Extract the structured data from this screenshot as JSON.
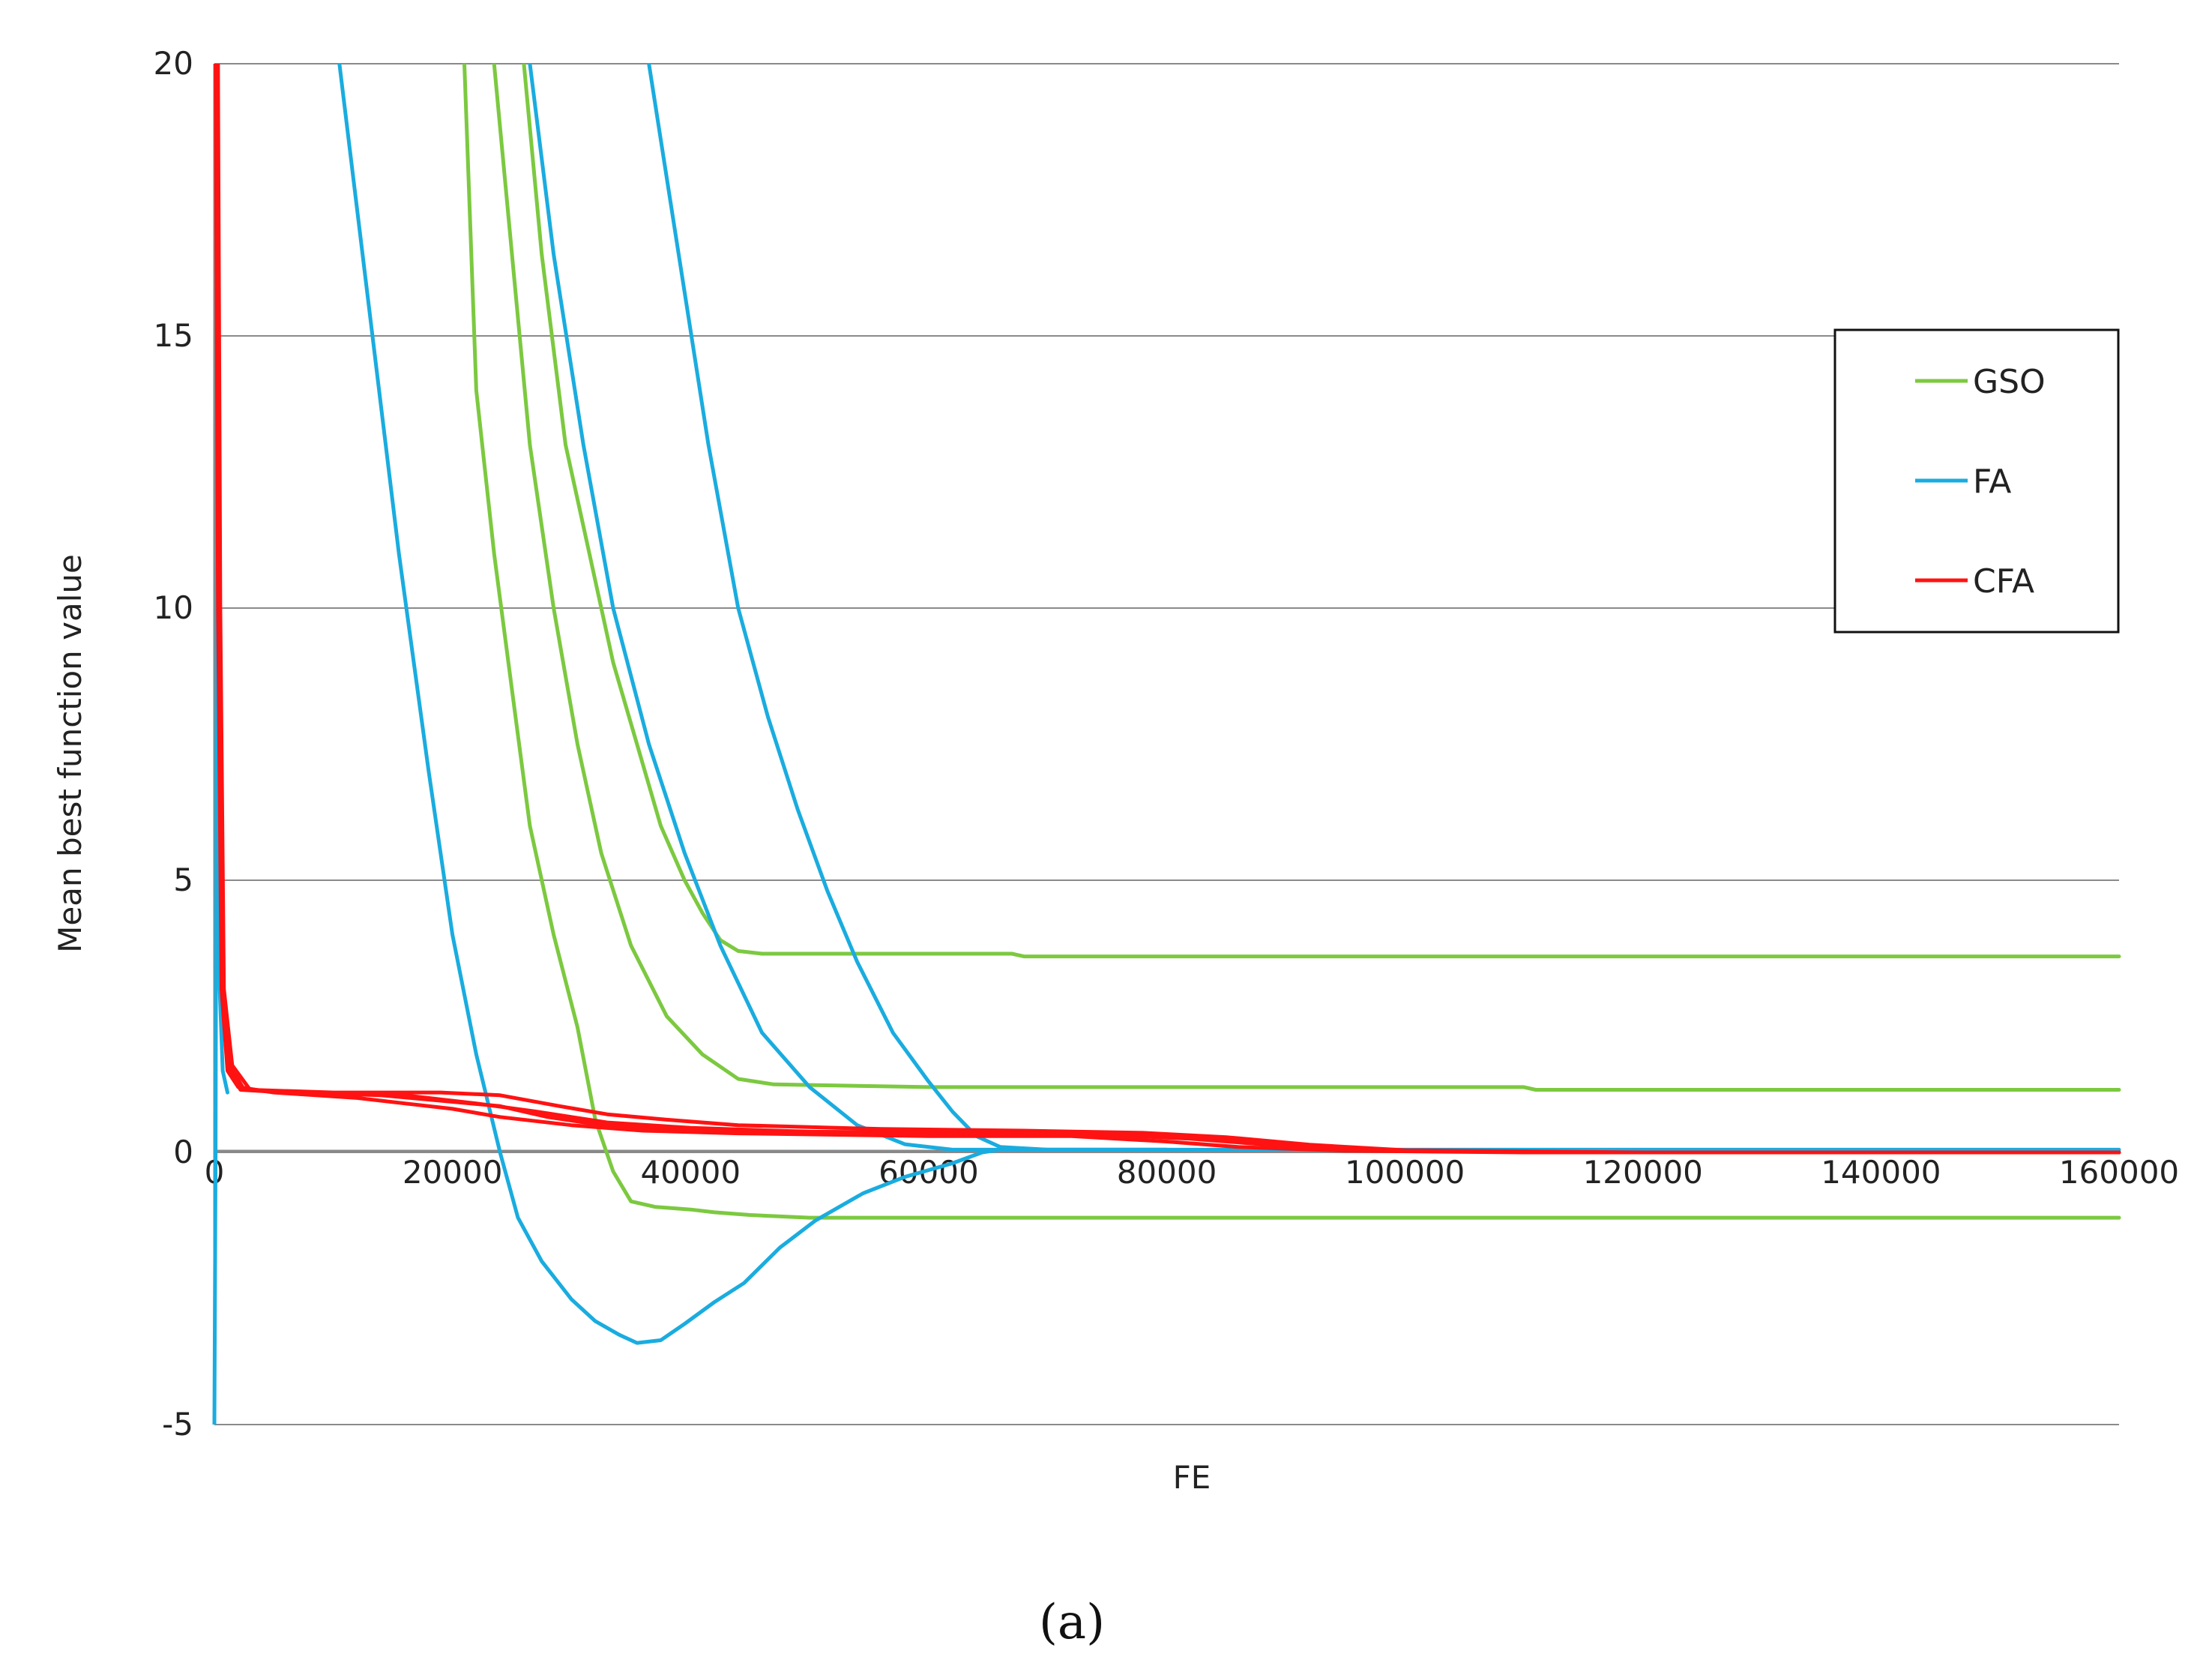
{
  "chart_data": {
    "type": "line",
    "title": "",
    "xlabel": "FE",
    "ylabel": "Mean best function value",
    "xlim": [
      0,
      160000
    ],
    "ylim": [
      -5,
      20
    ],
    "x_ticks": [
      "0",
      "20000",
      "40000",
      "60000",
      "80000",
      "100000",
      "120000",
      "140000",
      "160000"
    ],
    "y_ticks": [
      "20",
      "15",
      "10",
      "5",
      "0",
      "-5"
    ],
    "grid": "horizontal",
    "legend_position": "right",
    "panel_label": "(a)",
    "legend": [
      {
        "name": "GSO",
        "color": "#7cc940"
      },
      {
        "name": "FA",
        "color": "#1aacdf"
      },
      {
        "name": "CFA",
        "color": "#ff1212"
      }
    ],
    "series": [
      {
        "group": "GSO",
        "color": "#7cc940",
        "points": [
          [
            21000,
            20
          ],
          [
            22000,
            14
          ],
          [
            23500,
            11
          ],
          [
            25000,
            8.5
          ],
          [
            26500,
            6
          ],
          [
            28500,
            4
          ],
          [
            30500,
            2.3
          ],
          [
            32000,
            0.6
          ],
          [
            33500,
            -0.35
          ],
          [
            35000,
            -0.9
          ],
          [
            37000,
            -1.0
          ],
          [
            40000,
            -1.05
          ],
          [
            42000,
            -1.1
          ],
          [
            45000,
            -1.15
          ],
          [
            50000,
            -1.2
          ],
          [
            70000,
            -1.2
          ],
          [
            160000,
            -1.2
          ]
        ]
      },
      {
        "group": "GSO",
        "color": "#7cc940",
        "points": [
          [
            23500,
            20
          ],
          [
            25000,
            16.5
          ],
          [
            26500,
            13
          ],
          [
            28500,
            10
          ],
          [
            30500,
            7.5
          ],
          [
            32500,
            5.5
          ],
          [
            35000,
            3.8
          ],
          [
            38000,
            2.5
          ],
          [
            41000,
            1.8
          ],
          [
            44000,
            1.35
          ],
          [
            47000,
            1.25
          ],
          [
            60000,
            1.2
          ],
          [
            110000,
            1.2
          ],
          [
            111000,
            1.15
          ],
          [
            160000,
            1.15
          ]
        ]
      },
      {
        "group": "GSO",
        "color": "#7cc940",
        "points": [
          [
            26000,
            20
          ],
          [
            27500,
            16.5
          ],
          [
            29500,
            13
          ],
          [
            31500,
            11
          ],
          [
            33500,
            9
          ],
          [
            35500,
            7.5
          ],
          [
            37500,
            6
          ],
          [
            39500,
            5
          ],
          [
            41000,
            4.4
          ],
          [
            42500,
            3.9
          ],
          [
            44000,
            3.7
          ],
          [
            46000,
            3.65
          ],
          [
            67000,
            3.65
          ],
          [
            68000,
            3.6
          ],
          [
            160000,
            3.6
          ]
        ]
      },
      {
        "group": "FA",
        "color": "#1aacdf",
        "points": [
          [
            10500,
            20
          ],
          [
            13000,
            15.5
          ],
          [
            15500,
            11
          ],
          [
            18000,
            7
          ],
          [
            20000,
            4
          ],
          [
            22000,
            1.8
          ],
          [
            24000,
            0
          ],
          [
            25500,
            -1.2
          ],
          [
            27500,
            -2.0
          ],
          [
            30000,
            -2.7
          ],
          [
            32000,
            -3.1
          ],
          [
            34000,
            -3.35
          ],
          [
            35500,
            -3.5
          ],
          [
            37500,
            -3.45
          ],
          [
            39500,
            -3.15
          ],
          [
            42000,
            -2.75
          ],
          [
            44500,
            -2.4
          ],
          [
            47500,
            -1.75
          ],
          [
            50500,
            -1.25
          ],
          [
            54500,
            -0.75
          ],
          [
            58000,
            -0.45
          ],
          [
            62000,
            -0.2
          ],
          [
            64500,
            0
          ],
          [
            66000,
            0.05
          ],
          [
            80000,
            0.05
          ],
          [
            160000,
            0.05
          ]
        ]
      },
      {
        "group": "FA",
        "color": "#1aacdf",
        "points": [
          [
            26500,
            20
          ],
          [
            28500,
            16.5
          ],
          [
            31000,
            13
          ],
          [
            33500,
            10
          ],
          [
            36500,
            7.5
          ],
          [
            39500,
            5.5
          ],
          [
            42500,
            3.8
          ],
          [
            46000,
            2.2
          ],
          [
            50000,
            1.2
          ],
          [
            54000,
            0.5
          ],
          [
            58000,
            0.15
          ],
          [
            62000,
            0.05
          ],
          [
            80000,
            0.05
          ]
        ]
      },
      {
        "group": "FA",
        "color": "#1aacdf",
        "points": [
          [
            36500,
            20
          ],
          [
            39000,
            16.5
          ],
          [
            41500,
            13
          ],
          [
            44000,
            10
          ],
          [
            46500,
            8
          ],
          [
            49000,
            6.3
          ],
          [
            51500,
            4.8
          ],
          [
            54000,
            3.5
          ],
          [
            57000,
            2.2
          ],
          [
            60000,
            1.3
          ],
          [
            62000,
            0.75
          ],
          [
            64000,
            0.3
          ],
          [
            66000,
            0.1
          ],
          [
            70000,
            0.05
          ],
          [
            80000,
            0.05
          ]
        ]
      },
      {
        "group": "FA",
        "color": "#1aacdf",
        "points": [
          [
            0,
            -5
          ],
          [
            100,
            0
          ],
          [
            200,
            10
          ],
          [
            300,
            20
          ]
        ]
      },
      {
        "group": "FA",
        "color": "#1aacdf",
        "points": [
          [
            250,
            20
          ],
          [
            350,
            8
          ],
          [
            450,
            3
          ],
          [
            700,
            1.5
          ],
          [
            1100,
            1.1
          ]
        ]
      },
      {
        "group": "CFA",
        "color": "#ff1212",
        "points": [
          [
            100,
            20
          ],
          [
            300,
            10
          ],
          [
            600,
            3
          ],
          [
            1100,
            1.5
          ],
          [
            2000,
            1.2
          ],
          [
            5000,
            1.1
          ],
          [
            12000,
            1.0
          ],
          [
            16000,
            0.9
          ],
          [
            20000,
            0.8
          ],
          [
            24000,
            0.65
          ],
          [
            30000,
            0.5
          ],
          [
            36000,
            0.4
          ],
          [
            44000,
            0.35
          ],
          [
            60000,
            0.3
          ],
          [
            72000,
            0.3
          ],
          [
            80000,
            0.2
          ],
          [
            86000,
            0.1
          ],
          [
            95000,
            0.03
          ],
          [
            110000,
            0.0
          ],
          [
            160000,
            0.0
          ]
        ]
      },
      {
        "group": "CFA",
        "color": "#ff1212",
        "points": [
          [
            200,
            20
          ],
          [
            400,
            10
          ],
          [
            700,
            3
          ],
          [
            1300,
            1.6
          ],
          [
            2500,
            1.15
          ],
          [
            8000,
            1.1
          ],
          [
            16000,
            1.05
          ],
          [
            22000,
            0.9
          ],
          [
            27000,
            0.75
          ],
          [
            33000,
            0.55
          ],
          [
            40000,
            0.45
          ],
          [
            50000,
            0.38
          ],
          [
            62000,
            0.35
          ],
          [
            74000,
            0.33
          ],
          [
            82000,
            0.25
          ],
          [
            88000,
            0.15
          ],
          [
            98000,
            0.04
          ],
          [
            115000,
            0.0
          ],
          [
            160000,
            0.0
          ]
        ]
      },
      {
        "group": "CFA",
        "color": "#ff1212",
        "points": [
          [
            300,
            20
          ],
          [
            500,
            10
          ],
          [
            800,
            3
          ],
          [
            1500,
            1.6
          ],
          [
            3000,
            1.15
          ],
          [
            10000,
            1.1
          ],
          [
            19000,
            1.1
          ],
          [
            24000,
            1.05
          ],
          [
            29000,
            0.85
          ],
          [
            33000,
            0.7
          ],
          [
            38000,
            0.6
          ],
          [
            44000,
            0.5
          ],
          [
            56000,
            0.43
          ],
          [
            68000,
            0.4
          ],
          [
            78000,
            0.36
          ],
          [
            85000,
            0.28
          ],
          [
            92000,
            0.14
          ],
          [
            100000,
            0.04
          ],
          [
            120000,
            0.0
          ],
          [
            160000,
            0.0
          ]
        ]
      },
      {
        "group": "CFA",
        "color": "#ff1212",
        "points": [
          [
            150,
            20
          ],
          [
            350,
            10
          ],
          [
            650,
            3
          ],
          [
            1200,
            1.55
          ],
          [
            2200,
            1.15
          ],
          [
            6000,
            1.1
          ],
          [
            14000,
            1.05
          ],
          [
            19000,
            0.95
          ],
          [
            24000,
            0.85
          ],
          [
            28000,
            0.65
          ],
          [
            32000,
            0.52
          ],
          [
            38000,
            0.42
          ],
          [
            48000,
            0.38
          ],
          [
            60000,
            0.37
          ],
          [
            76000,
            0.35
          ],
          [
            83000,
            0.27
          ],
          [
            90000,
            0.12
          ],
          [
            98000,
            0.03
          ],
          [
            112000,
            0.0
          ],
          [
            160000,
            0.0
          ]
        ]
      }
    ]
  }
}
